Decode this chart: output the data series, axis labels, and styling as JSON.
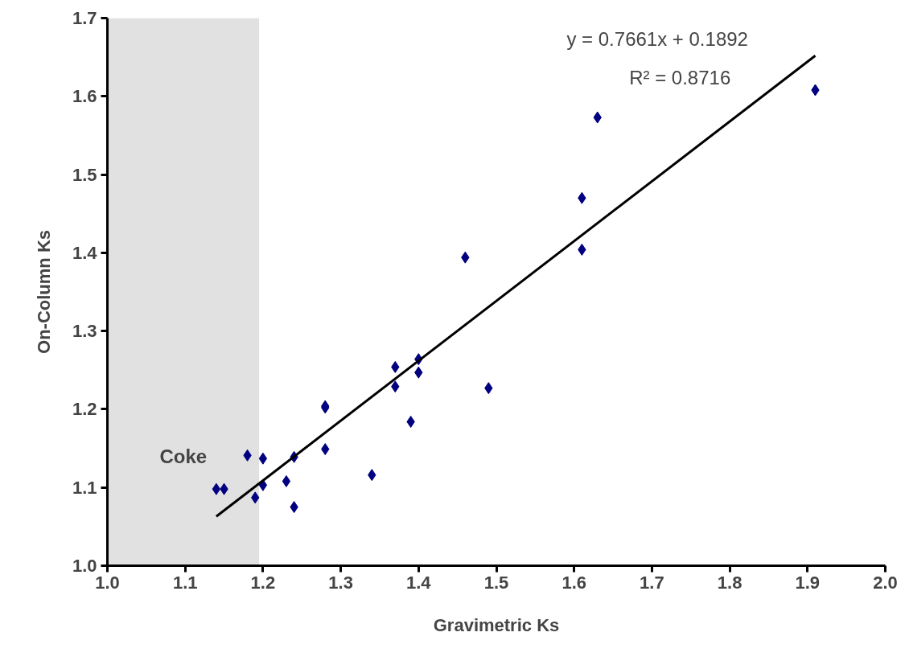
{
  "chart_data": {
    "type": "scatter",
    "xlabel": "Gravimetric Ks",
    "ylabel": "On-Column Ks",
    "xlim": [
      1.0,
      2.0
    ],
    "xticks": [
      {
        "value": 1.0,
        "label": "1.0"
      },
      1.1,
      1.2,
      1.3,
      1.4,
      1.5,
      1.6,
      1.7,
      1.8,
      1.9,
      {
        "value": 2.0,
        "label": "2.0"
      }
    ],
    "ylim": [
      1.0,
      1.7
    ],
    "yticks": [
      {
        "value": 1.0,
        "label": "1.0"
      },
      1.1,
      1.2,
      1.3,
      1.4,
      1.5,
      1.6,
      1.7
    ],
    "grid": false,
    "marker": "diamond",
    "series": [
      {
        "color": "#000080",
        "x": [
          1.14,
          1.15,
          1.18,
          1.19,
          1.2,
          1.2,
          1.23,
          1.24,
          1.24,
          1.28,
          1.28,
          1.28,
          1.34,
          1.37,
          1.37,
          1.39,
          1.4,
          1.4,
          1.46,
          1.49,
          1.61,
          1.61,
          1.63,
          1.91
        ],
        "values": [
          1.098,
          1.098,
          1.141,
          1.087,
          1.137,
          1.103,
          1.108,
          1.139,
          1.075,
          1.204,
          1.202,
          1.149,
          1.116,
          1.254,
          1.229,
          1.184,
          1.264,
          1.247,
          1.394,
          1.227,
          1.47,
          1.404,
          1.573,
          1.608
        ]
      },
      {
        "type": "line",
        "marker": "none",
        "color": "#000000",
        "x": [
          1.14,
          1.91
        ],
        "values": [
          1.063,
          1.652
        ]
      }
    ],
    "bands": [
      {
        "axis": "x",
        "from": 1.0,
        "to": 1.195,
        "label": "Coke",
        "color": "#d9d9d9"
      }
    ],
    "annotations": [
      "y = 0.7661x + 0.1892",
      "R² = 0.8716"
    ]
  }
}
